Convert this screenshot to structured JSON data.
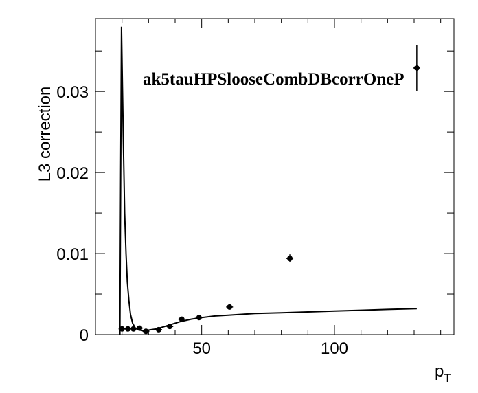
{
  "chart_data": {
    "type": "scatter",
    "title": "ak5tauHPSlooseCombDBcorrOneP",
    "xlabel": "p",
    "xlabel_sub": "T",
    "ylabel": "L3 correction",
    "xlim": [
      10,
      145
    ],
    "ylim": [
      0,
      0.039
    ],
    "xticks": [
      50,
      100
    ],
    "xtick_labels": [
      "50",
      "100"
    ],
    "yticks": [
      0,
      0.01,
      0.02,
      0.03
    ],
    "ytick_labels": [
      "0",
      "0.01",
      "0.02",
      "0.03"
    ],
    "grid": false,
    "series": [
      {
        "kind": "points",
        "x": [
          20.0,
          22.2,
          24.3,
          26.6,
          29.0,
          33.8,
          38.0,
          42.5,
          49.0,
          60.5,
          83.2,
          131.0
        ],
        "y": [
          0.0007,
          0.0007,
          0.0007,
          0.0008,
          0.0004,
          0.0006,
          0.001,
          0.0019,
          0.0021,
          0.0034,
          0.0094,
          0.0329
        ],
        "yerr": [
          0.0002,
          0.0002,
          0.0002,
          0.0002,
          0.0002,
          0.0002,
          0.0002,
          0.0003,
          0.0003,
          0.0003,
          0.0005,
          0.0028
        ]
      },
      {
        "kind": "line",
        "x": [
          19.2,
          19.5,
          19.8,
          20.2,
          20.6,
          21.0,
          21.5,
          22.0,
          22.6,
          23.2,
          24.0,
          25.0,
          26.0,
          27.5,
          29.0,
          31.0,
          33.0,
          35.0,
          38.0,
          42.0,
          46.0,
          50.0,
          55.0,
          60.0,
          70.0,
          80.0,
          90.0,
          100.0,
          110.0,
          120.0,
          131.0
        ],
        "y": [
          0.0,
          0.02,
          0.038,
          0.03,
          0.022,
          0.015,
          0.01,
          0.0065,
          0.0042,
          0.0025,
          0.0014,
          0.0008,
          0.0006,
          0.0005,
          0.0005,
          0.0006,
          0.0007,
          0.0009,
          0.0012,
          0.0016,
          0.0019,
          0.0021,
          0.0023,
          0.0024,
          0.0026,
          0.0027,
          0.0028,
          0.0029,
          0.003,
          0.0031,
          0.0032
        ]
      }
    ]
  }
}
